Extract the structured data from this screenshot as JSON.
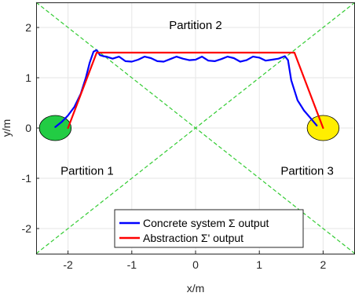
{
  "chart_data": {
    "type": "line",
    "xlabel": "x/m",
    "ylabel": "y/m",
    "xlim": [
      -2.5,
      2.5
    ],
    "ylim": [
      -2.5,
      2.5
    ],
    "xticks": [
      -2,
      -1,
      0,
      1,
      2
    ],
    "yticks": [
      -2,
      -1,
      0,
      1,
      2
    ],
    "grid": true,
    "legend_position": "bottom-center",
    "annotations": [
      {
        "text": "Partition 2",
        "x": 0,
        "y": 2.05
      },
      {
        "text": "Partition 1",
        "x": -1.7,
        "y": -0.85
      },
      {
        "text": "Partition 3",
        "x": 1.75,
        "y": -0.85
      }
    ],
    "boundaries": [
      {
        "from": [
          -2.5,
          2.5
        ],
        "to": [
          2.5,
          -2.5
        ],
        "color": "#33cc33",
        "style": "dashed"
      },
      {
        "from": [
          -2.5,
          -2.5
        ],
        "to": [
          2.5,
          2.5
        ],
        "color": "#33cc33",
        "style": "dashed"
      }
    ],
    "regions": [
      {
        "type": "circle",
        "center": [
          -2.2,
          0
        ],
        "radius": 0.25,
        "color": "#22cc44"
      },
      {
        "type": "circle",
        "center": [
          2.0,
          0
        ],
        "radius": 0.25,
        "color": "#ffee00"
      }
    ],
    "series": [
      {
        "name": "Concrete system Σ output",
        "color": "#0000ff",
        "x": [
          -2.2,
          -2.1,
          -2.0,
          -1.9,
          -1.8,
          -1.72,
          -1.66,
          -1.6,
          -1.55,
          -1.5,
          -1.45,
          -1.4,
          -1.3,
          -1.2,
          -1.1,
          -1.0,
          -0.9,
          -0.8,
          -0.7,
          -0.6,
          -0.5,
          -0.4,
          -0.3,
          -0.2,
          -0.1,
          0.0,
          0.1,
          0.2,
          0.3,
          0.4,
          0.5,
          0.6,
          0.7,
          0.8,
          0.9,
          1.0,
          1.1,
          1.2,
          1.3,
          1.4,
          1.45,
          1.5,
          1.6,
          1.7,
          1.8,
          1.9
        ],
        "y": [
          0.02,
          0.12,
          0.25,
          0.42,
          0.68,
          1.0,
          1.3,
          1.52,
          1.55,
          1.45,
          1.43,
          1.42,
          1.38,
          1.42,
          1.33,
          1.32,
          1.36,
          1.42,
          1.39,
          1.33,
          1.32,
          1.37,
          1.42,
          1.38,
          1.35,
          1.36,
          1.42,
          1.34,
          1.33,
          1.37,
          1.42,
          1.39,
          1.32,
          1.35,
          1.42,
          1.4,
          1.34,
          1.36,
          1.38,
          1.43,
          1.35,
          0.95,
          0.55,
          0.35,
          0.2,
          0.05
        ]
      },
      {
        "name": "Abstraction Σ' output",
        "color": "#ff0000",
        "x": [
          -2.0,
          -1.55,
          1.55,
          2.0
        ],
        "y": [
          0.0,
          1.5,
          1.5,
          0.0
        ]
      }
    ]
  }
}
